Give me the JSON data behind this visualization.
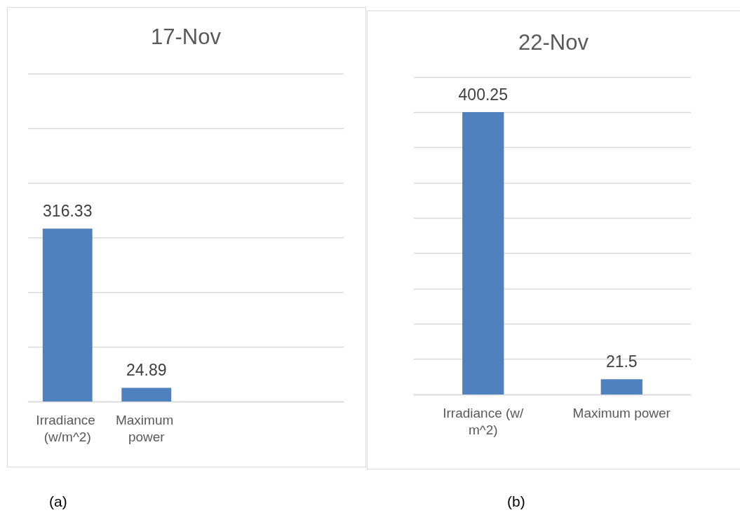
{
  "chart_data": [
    {
      "type": "bar",
      "title": "17-Nov",
      "categories": [
        "Irradiance (w/m^2)",
        "Maximum power",
        null,
        null
      ],
      "values": [
        316.33,
        24.89,
        null,
        null
      ],
      "color": "#4e81bd",
      "data_labels": true,
      "ylim": [
        0,
        600
      ],
      "yticks": [
        {
          "value": 0,
          "label": null
        },
        {
          "value": 100,
          "label": null
        },
        {
          "value": 200,
          "label": null
        },
        {
          "value": 300,
          "label": null
        },
        {
          "value": 400,
          "label": null
        },
        {
          "value": 500,
          "label": null
        },
        {
          "value": 600,
          "label": null
        }
      ],
      "grid": "y",
      "annotations": [
        "(a)"
      ]
    },
    {
      "type": "bar",
      "title": "22-Nov",
      "categories": [
        "Irradiance (w/m^2)",
        "Maximum power"
      ],
      "values": [
        400.25,
        21.5
      ],
      "color": "#4e81bd",
      "data_labels": true,
      "ylim": [
        0,
        450
      ],
      "yticks": [
        {
          "value": 0,
          "label": null
        },
        {
          "value": 50,
          "label": null
        },
        {
          "value": 100,
          "label": null
        },
        {
          "value": 150,
          "label": null
        },
        {
          "value": 200,
          "label": null
        },
        {
          "value": 250,
          "label": null
        },
        {
          "value": 300,
          "label": null
        },
        {
          "value": 350,
          "label": null
        },
        {
          "value": 400,
          "label": null
        },
        {
          "value": 450,
          "label": null
        }
      ],
      "grid": "y",
      "annotations": [
        "(b)"
      ]
    }
  ]
}
